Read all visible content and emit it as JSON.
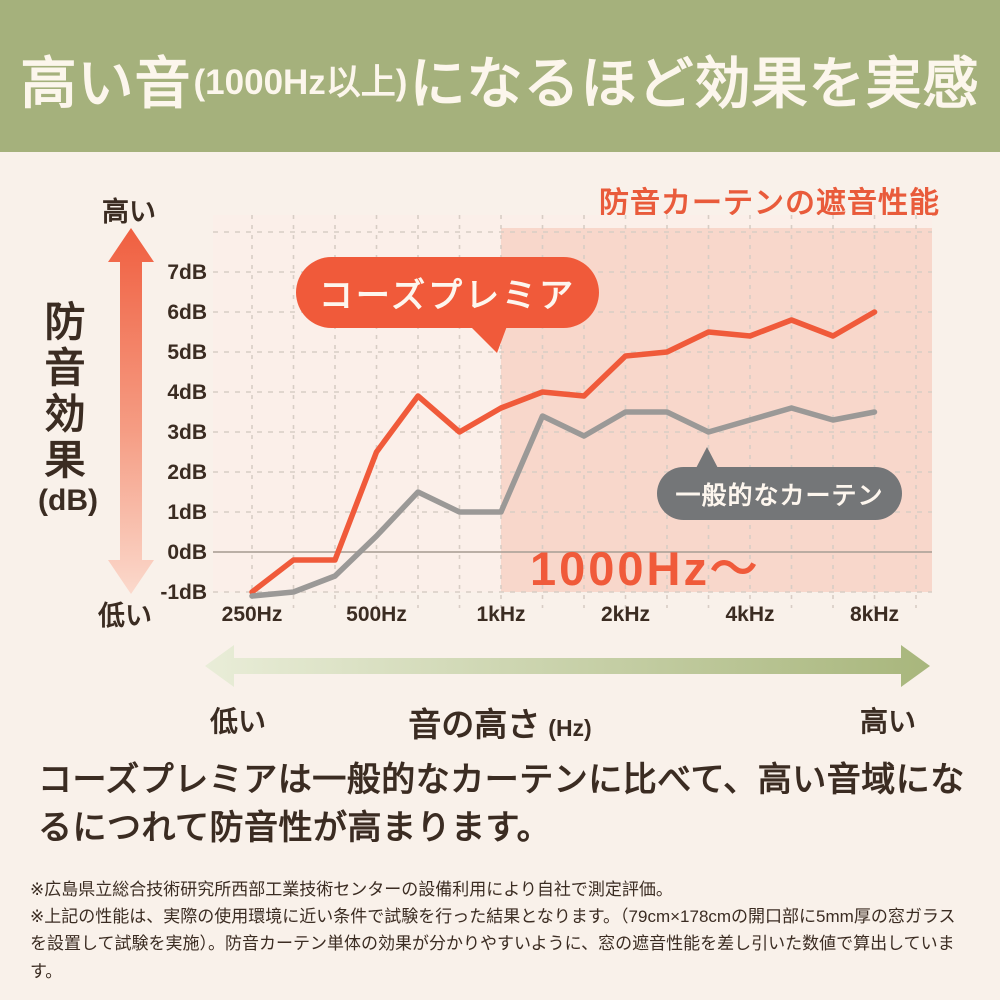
{
  "title": {
    "part1": "高い音",
    "part2": "(1000Hz以上)",
    "part3": "になるほど効果を実感"
  },
  "chart": {
    "heading": "防音カーテンの遮音性能",
    "y_axis": {
      "top_label": "高い",
      "bottom_label": "低い",
      "axis_title": "防音効果",
      "axis_unit": "(dB)",
      "ticks": [
        "7dB",
        "6dB",
        "5dB",
        "4dB",
        "3dB",
        "2dB",
        "1dB",
        "0dB",
        "-1dB"
      ]
    },
    "series_bubbles": {
      "premier": "コーズプレミア",
      "general": "一般的なカーテン"
    },
    "highlight_label": "1000Hz〜"
  },
  "chart_data": {
    "type": "line",
    "x": [
      250,
      315,
      400,
      500,
      630,
      800,
      1000,
      1250,
      1600,
      2000,
      2500,
      3150,
      4000,
      5000,
      6300,
      8000
    ],
    "x_tick_positions": [
      250,
      500,
      1000,
      2000,
      4000,
      8000
    ],
    "x_tick_labels": [
      "250Hz",
      "500Hz",
      "1kHz",
      "2kHz",
      "4kHz",
      "8kHz"
    ],
    "y_tick_values": [
      7,
      6,
      5,
      4,
      3,
      2,
      1,
      0,
      -1
    ],
    "y_grid_values": [
      8,
      7,
      6,
      5,
      4,
      3,
      2,
      1,
      0,
      -1
    ],
    "ylim": [
      -1.5,
      8.4
    ],
    "ylabel": "防音効果 (dB)",
    "xlabel": "音の高さ (Hz)",
    "grid": "dashed, 0dB line solid",
    "legend_position": "speech bubbles on plot",
    "highlight_region": {
      "from_hz": 1000,
      "label": "1000Hz〜"
    },
    "series": [
      {
        "name": "コーズプレミア",
        "color": "#f05a3a",
        "values": [
          -1.0,
          -0.2,
          -0.2,
          2.5,
          3.9,
          3.0,
          3.6,
          4.0,
          3.9,
          4.9,
          5.0,
          5.5,
          5.4,
          5.8,
          5.4,
          6.0
        ]
      },
      {
        "name": "一般的なカーテン",
        "color": "#9b9997",
        "values": [
          -1.1,
          -1.0,
          -0.6,
          0.4,
          1.5,
          1.0,
          1.0,
          3.4,
          2.9,
          3.5,
          3.5,
          3.0,
          3.3,
          3.6,
          3.3,
          3.5
        ]
      }
    ]
  },
  "pitch_axis": {
    "low": "低い",
    "label": "音の高さ",
    "unit": "(Hz)",
    "high": "高い"
  },
  "body": {
    "text": "コーズプレミアは一般的なカーテンに比べて、高い音域になるにつれて防音性が高まります。"
  },
  "footnotes": [
    "※広島県立総合技術研究所西部工業技術センターの設備利用により自社で測定評価。",
    "※上記の性能は、実際の使用環境に近い条件で試験を行った結果となります。（79cm×178cmの開口部に5mm厚の窓ガラスを設置して試験を実施）。防音カーテン単体の効果が分かりやすいように、窓の遮音性能を差し引いた数値で算出しています。"
  ],
  "colors": {
    "band_green": "#a5b17c",
    "accent_orange": "#f05a3a",
    "heading_orange": "#e95b3b",
    "pink_region": "#f8d7cb",
    "plot_bg": "#fbefe9",
    "grid": "#d8cdc5",
    "zero_line": "#b1a69d",
    "gray_line": "#9b9997",
    "gray_bubble": "#747678",
    "text_dark": "#3b2c22",
    "page_cream": "#f9f1ea"
  }
}
